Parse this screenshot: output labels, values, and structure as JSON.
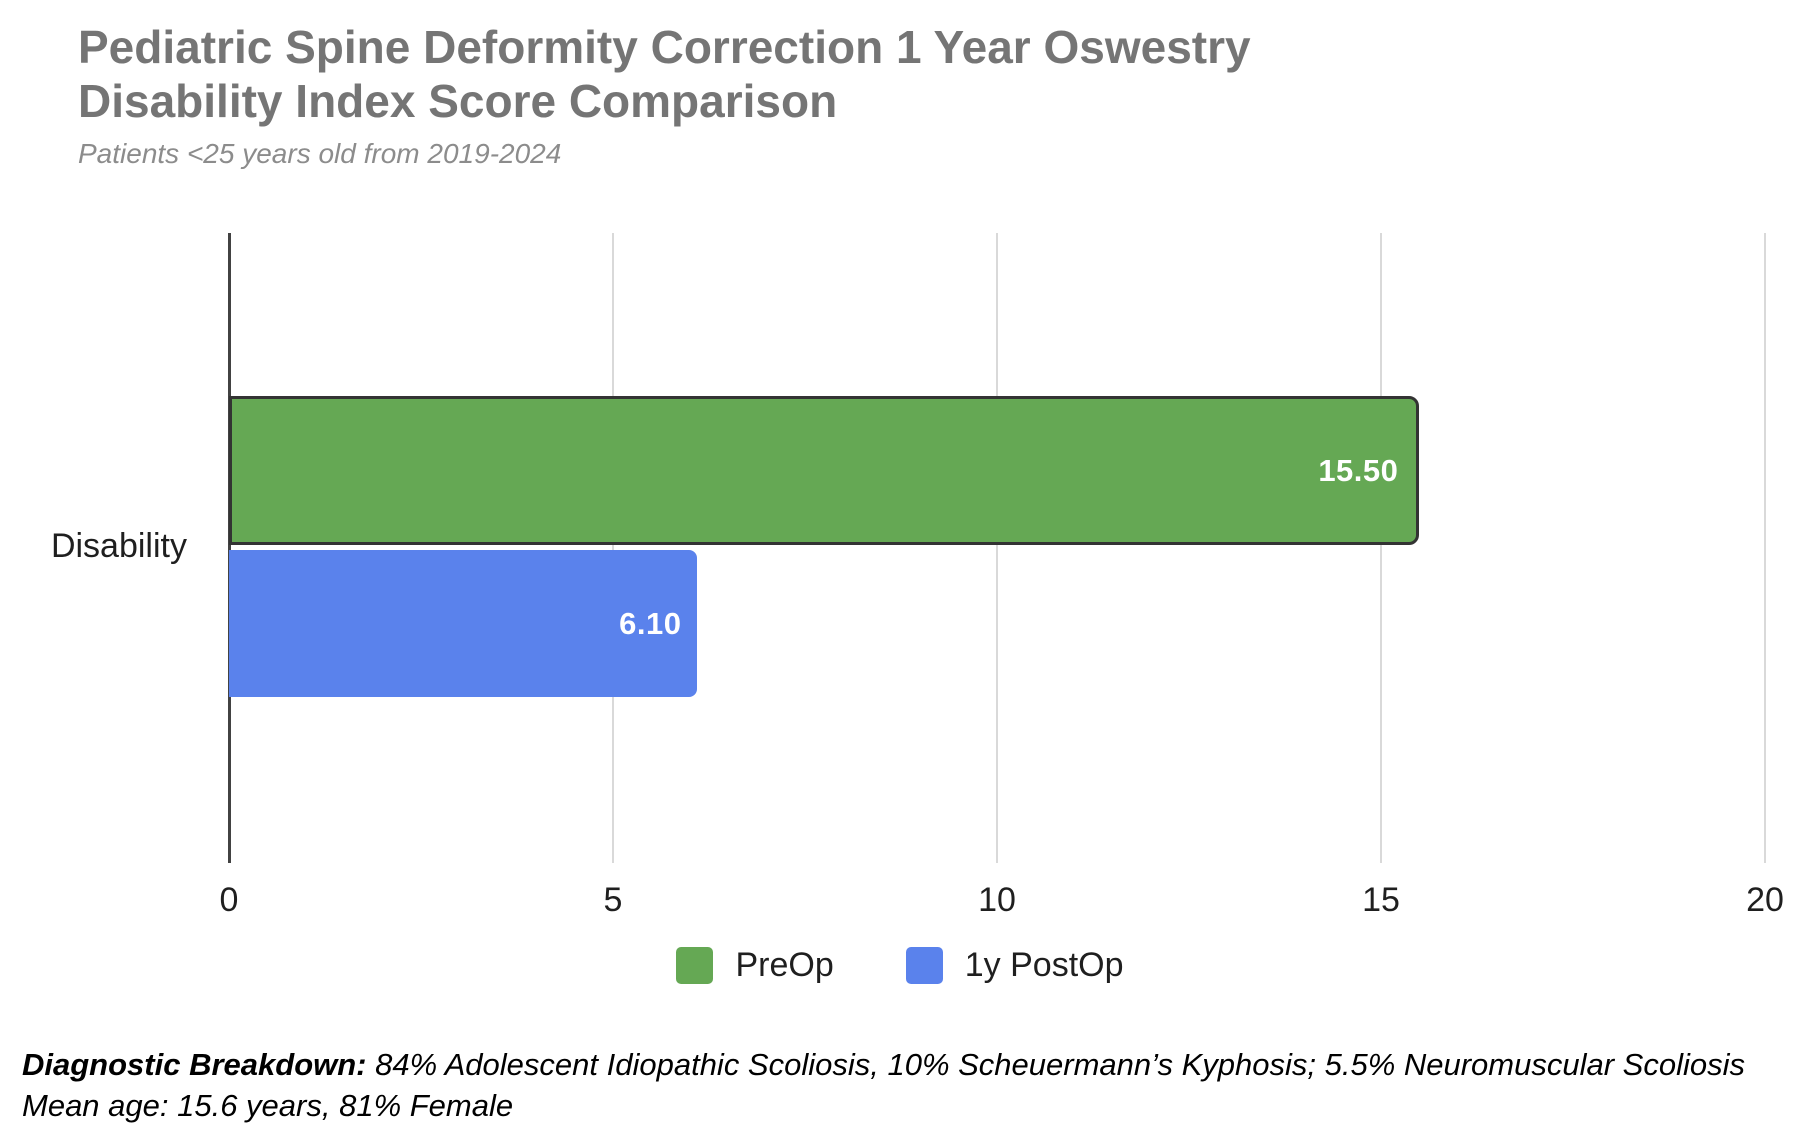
{
  "chart": {
    "title": "Pediatric Spine Deformity Correction 1 Year Oswestry Disability Index Score Comparison",
    "subtitle": "Patients <25 years old from 2019-2024"
  },
  "chart_data": {
    "type": "bar",
    "orientation": "horizontal",
    "title": "Pediatric Spine Deformity Correction 1 Year Oswestry Disability Index Score Comparison",
    "subtitle": "Patients <25 years old from 2019-2024",
    "categories": [
      "Disability"
    ],
    "series": [
      {
        "name": "PreOp",
        "values": [
          15.5
        ],
        "data_labels": [
          "15.50"
        ],
        "color": "#65a854",
        "border_color": "#333333"
      },
      {
        "name": "1y PostOp",
        "values": [
          6.1
        ],
        "data_labels": [
          "6.10"
        ],
        "color": "#5a82ec",
        "border_color": null
      }
    ],
    "xlabel": "",
    "ylabel": "",
    "xlim": [
      0,
      20
    ],
    "x_ticks": [
      0,
      5,
      10,
      15,
      20
    ],
    "grid": "vertical-gridlines-on",
    "legend_position": "bottom"
  },
  "axis": {
    "tick_labels": [
      "0",
      "5",
      "10",
      "15",
      "20"
    ],
    "category_label": "Disability"
  },
  "legend": {
    "items": [
      {
        "label": "PreOp",
        "color": "#65a854"
      },
      {
        "label": "1y PostOp",
        "color": "#5a82ec"
      }
    ]
  },
  "footer": {
    "line1_bold": "Diagnostic Breakdown:",
    "line1_rest": " 84% Adolescent Idiopathic Scoliosis, 10% Scheuermann’s Kyphosis; 5.5% Neuromuscular Scoliosis",
    "line2": "Mean age: 15.6 years, 81% Female"
  },
  "colors": {
    "title": "#757575",
    "subtitle": "#8c8c8c",
    "axis_line": "#424242",
    "gridline": "#d9d9d9",
    "tick_label": "#1f1f1f",
    "bar_label": "#ffffff",
    "footer_text": "#000000",
    "background": "#ffffff"
  }
}
